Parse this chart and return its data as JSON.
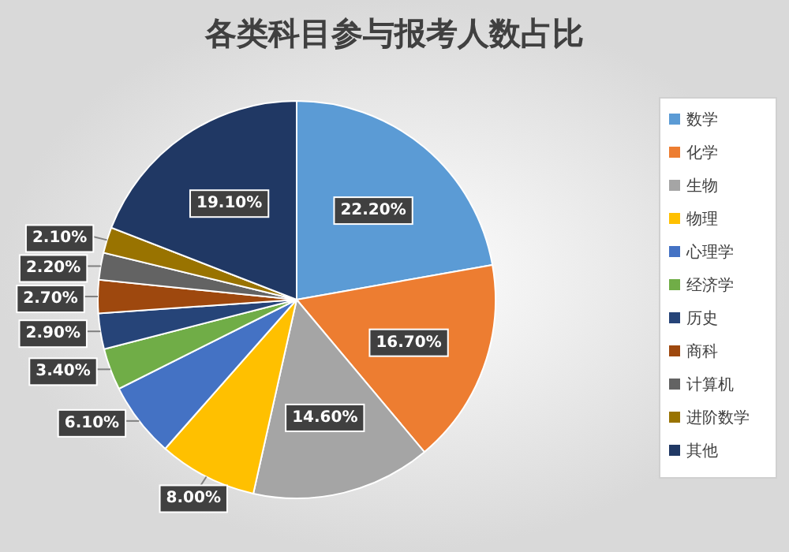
{
  "chart_data": {
    "type": "pie",
    "title": "各类科目参与报考人数占比",
    "categories": [
      "数学",
      "化学",
      "生物",
      "物理",
      "心理学",
      "经济学",
      "历史",
      "商科",
      "计算机",
      "进阶数学",
      "其他"
    ],
    "values": [
      22.2,
      16.7,
      14.6,
      8.0,
      6.1,
      3.4,
      2.9,
      2.7,
      2.2,
      2.1,
      19.1
    ],
    "value_labels": [
      "22.20%",
      "16.70%",
      "14.60%",
      "8.00%",
      "6.10%",
      "3.40%",
      "2.90%",
      "2.70%",
      "2.20%",
      "2.10%",
      "19.10%"
    ],
    "colors": [
      "#5b9bd5",
      "#ed7d31",
      "#a5a5a5",
      "#ffc000",
      "#4472c4",
      "#70ad47",
      "#264478",
      "#9e480e",
      "#636363",
      "#997300",
      "#203864"
    ],
    "legend": "right"
  }
}
